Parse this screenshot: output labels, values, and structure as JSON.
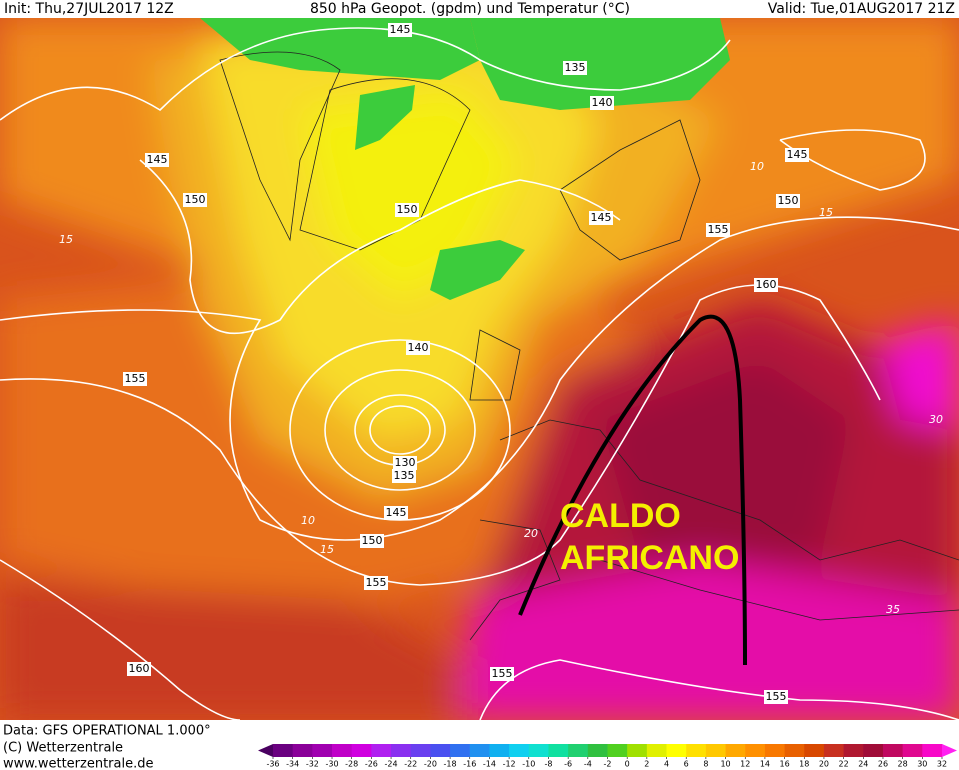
{
  "header": {
    "init": "Init: Thu,27JUL2017 12Z",
    "title": "850 hPa Geopot. (gpdm) und Temperatur (°C)",
    "valid": "Valid: Tue,01AUG2017 21Z"
  },
  "geopotential_labels": [
    145,
    135,
    140,
    145,
    150,
    150,
    145,
    155,
    150,
    145,
    160,
    155,
    140,
    130,
    135,
    145,
    150,
    155,
    160,
    155,
    155
  ],
  "temperature_labels": [
    10,
    15,
    15,
    10,
    15,
    20,
    30,
    35
  ],
  "annotation": {
    "line1": "CALDO",
    "line2": "AFRICANO"
  },
  "footer": {
    "data": "Data: GFS OPERATIONAL 1.000°",
    "copyright": "(C) Wetterzentrale",
    "url": "www.wetterzentrale.de"
  },
  "colorbar": {
    "ticks": [
      -36,
      -34,
      -32,
      -30,
      -28,
      -26,
      -24,
      -22,
      -20,
      -18,
      -16,
      -14,
      -12,
      -10,
      -8,
      -6,
      -4,
      -2,
      0,
      2,
      4,
      6,
      8,
      10,
      12,
      14,
      16,
      18,
      20,
      22,
      24,
      26,
      28,
      30,
      32
    ],
    "colors": [
      "#4a0060",
      "#6a0080",
      "#8a0099",
      "#a000b0",
      "#c000c8",
      "#d000e0",
      "#b020f0",
      "#8a30f0",
      "#6a40f0",
      "#4a50f0",
      "#3070f0",
      "#2090f0",
      "#10b0f0",
      "#10d0f0",
      "#10e0d0",
      "#10e0a0",
      "#20d070",
      "#30c040",
      "#50d020",
      "#a0e000",
      "#e0f000",
      "#ffff00",
      "#ffe000",
      "#ffc800",
      "#ffa800",
      "#ff9000",
      "#f87800",
      "#e86000",
      "#d84800",
      "#c83020",
      "#b01830",
      "#a00c38",
      "#c00860",
      "#e00890",
      "#f808c8",
      "#ff20f0"
    ]
  }
}
